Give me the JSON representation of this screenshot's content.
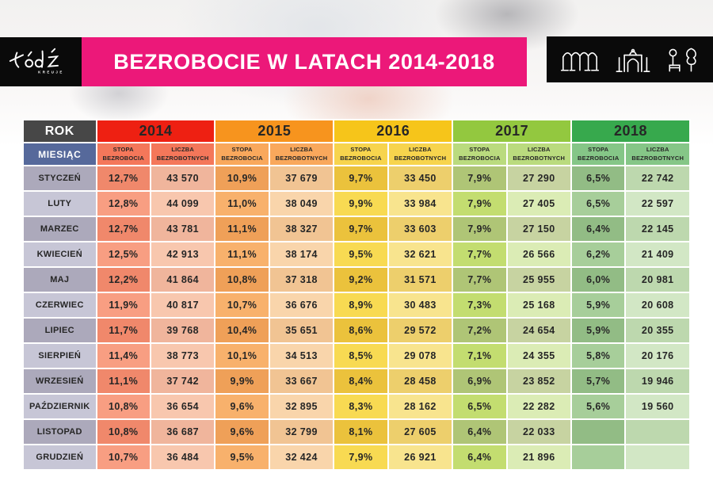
{
  "logo": {
    "name": "Łódź",
    "subtext": "KREUJE"
  },
  "banner": {
    "title": "BEZROBOCIE W LATACH 2014-2018",
    "bg": "#EC1879"
  },
  "landmarks": {
    "icons": [
      "viaduct-icon",
      "gate-icon",
      "park-icon"
    ]
  },
  "table": {
    "rok_label": "ROK",
    "miesiac_label": "MIESIĄC",
    "metric1": [
      "STOPA",
      "BEZROBOCIA"
    ],
    "metric2": [
      "LICZBA",
      "BEZROBOTNYCH"
    ],
    "colors": {
      "rok_bg": "#474747",
      "miesiac_bg": "#56699B",
      "month_cell": [
        "#ACA9BB",
        "#C7C6D6"
      ],
      "text": "#262626",
      "grid_gap": "#FFFFFF"
    }
  },
  "chart_data": {
    "type": "table",
    "title": "BEZROBOCIE W LATACH 2014-2018",
    "col_group_header": "ROK",
    "row_header": "MIESIĄC",
    "metrics": [
      "STOPA BEZROBOCIA",
      "LICZBA BEZROBOTNYCH"
    ],
    "years": [
      {
        "label": "2014",
        "header_bg": "#EE2012",
        "subheader_bg": "#F4775A",
        "stopa_bg": [
          "#F0886B",
          "#F89E82"
        ],
        "liczba_bg": [
          "#F0B59C",
          "#F8C7AE"
        ]
      },
      {
        "label": "2015",
        "header_bg": "#F7941E",
        "subheader_bg": "#F9A85C",
        "stopa_bg": [
          "#EFA058",
          "#F8B16C"
        ],
        "liczba_bg": [
          "#F1C493",
          "#F9D5AB"
        ]
      },
      {
        "label": "2016",
        "header_bg": "#F6C51A",
        "subheader_bg": "#F7D44D",
        "stopa_bg": [
          "#EBC23C",
          "#F8DA52"
        ],
        "liczba_bg": [
          "#EDCF6C",
          "#F8E48E"
        ]
      },
      {
        "label": "2017",
        "header_bg": "#93C83F",
        "subheader_bg": "#BADB7E",
        "stopa_bg": [
          "#AFC576",
          "#C3DD70"
        ],
        "liczba_bg": [
          "#C7D3A1",
          "#DBECB5"
        ]
      },
      {
        "label": "2018",
        "header_bg": "#37A94D",
        "subheader_bg": "#85C687",
        "stopa_bg": [
          "#92BC85",
          "#A7CE9A"
        ],
        "liczba_bg": [
          "#BDD8AE",
          "#D2E7C5"
        ]
      }
    ],
    "months": [
      "STYCZEŃ",
      "LUTY",
      "MARZEC",
      "KWIECIEŃ",
      "MAJ",
      "CZERWIEC",
      "LIPIEC",
      "SIERPIEŃ",
      "WRZESIEŃ",
      "PAŹDZIERNIK",
      "LISTOPAD",
      "GRUDZIEŃ"
    ],
    "rows": [
      {
        "month": "STYCZEŃ",
        "cells": [
          [
            "12,7%",
            "43 570"
          ],
          [
            "10,9%",
            "37 679"
          ],
          [
            "9,7%",
            "33 450"
          ],
          [
            "7,9%",
            "27 290"
          ],
          [
            "6,5%",
            "22 742"
          ]
        ]
      },
      {
        "month": "LUTY",
        "cells": [
          [
            "12,8%",
            "44 099"
          ],
          [
            "11,0%",
            "38 049"
          ],
          [
            "9,9%",
            "33 984"
          ],
          [
            "7,9%",
            "27 405"
          ],
          [
            "6,5%",
            "22 597"
          ]
        ]
      },
      {
        "month": "MARZEC",
        "cells": [
          [
            "12,7%",
            "43 781"
          ],
          [
            "11,1%",
            "38 327"
          ],
          [
            "9,7%",
            "33 603"
          ],
          [
            "7,9%",
            "27 150"
          ],
          [
            "6,4%",
            "22 145"
          ]
        ]
      },
      {
        "month": "KWIECIEŃ",
        "cells": [
          [
            "12,5%",
            "42 913"
          ],
          [
            "11,1%",
            "38 174"
          ],
          [
            "9,5%",
            "32 621"
          ],
          [
            "7,7%",
            "26 566"
          ],
          [
            "6,2%",
            "21 409"
          ]
        ]
      },
      {
        "month": "MAJ",
        "cells": [
          [
            "12,2%",
            "41 864"
          ],
          [
            "10,8%",
            "37 318"
          ],
          [
            "9,2%",
            "31 571"
          ],
          [
            "7,7%",
            "25 955"
          ],
          [
            "6,0%",
            "20 981"
          ]
        ]
      },
      {
        "month": "CZERWIEC",
        "cells": [
          [
            "11,9%",
            "40 817"
          ],
          [
            "10,7%",
            "36 676"
          ],
          [
            "8,9%",
            "30 483"
          ],
          [
            "7,3%",
            "25 168"
          ],
          [
            "5,9%",
            "20 608"
          ]
        ]
      },
      {
        "month": "LIPIEC",
        "cells": [
          [
            "11,7%",
            "39 768"
          ],
          [
            "10,4%",
            "35 651"
          ],
          [
            "8,6%",
            "29 572"
          ],
          [
            "7,2%",
            "24 654"
          ],
          [
            "5,9%",
            "20 355"
          ]
        ]
      },
      {
        "month": "SIERPIEŃ",
        "cells": [
          [
            "11,4%",
            "38 773"
          ],
          [
            "10,1%",
            "34 513"
          ],
          [
            "8,5%",
            "29 078"
          ],
          [
            "7,1%",
            "24 355"
          ],
          [
            "5,8%",
            "20 176"
          ]
        ]
      },
      {
        "month": "WRZESIEŃ",
        "cells": [
          [
            "11,1%",
            "37 742"
          ],
          [
            "9,9%",
            "33 667"
          ],
          [
            "8,4%",
            "28 458"
          ],
          [
            "6,9%",
            "23 852"
          ],
          [
            "5,7%",
            "19 946"
          ]
        ]
      },
      {
        "month": "PAŹDZIERNIK",
        "cells": [
          [
            "10,8%",
            "36 654"
          ],
          [
            "9,6%",
            "32 895"
          ],
          [
            "8,3%",
            "28 162"
          ],
          [
            "6,5%",
            "22 282"
          ],
          [
            "5,6%",
            "19 560"
          ]
        ]
      },
      {
        "month": "LISTOPAD",
        "cells": [
          [
            "10,8%",
            "36 687"
          ],
          [
            "9,6%",
            "32 799"
          ],
          [
            "8,1%",
            "27 605"
          ],
          [
            "6,4%",
            "22 033"
          ],
          [
            "",
            ""
          ]
        ]
      },
      {
        "month": "GRUDZIEŃ",
        "cells": [
          [
            "10,7%",
            "36 484"
          ],
          [
            "9,5%",
            "32 424"
          ],
          [
            "7,9%",
            "26 921"
          ],
          [
            "6,4%",
            "21 896"
          ],
          [
            "",
            ""
          ]
        ]
      }
    ]
  }
}
